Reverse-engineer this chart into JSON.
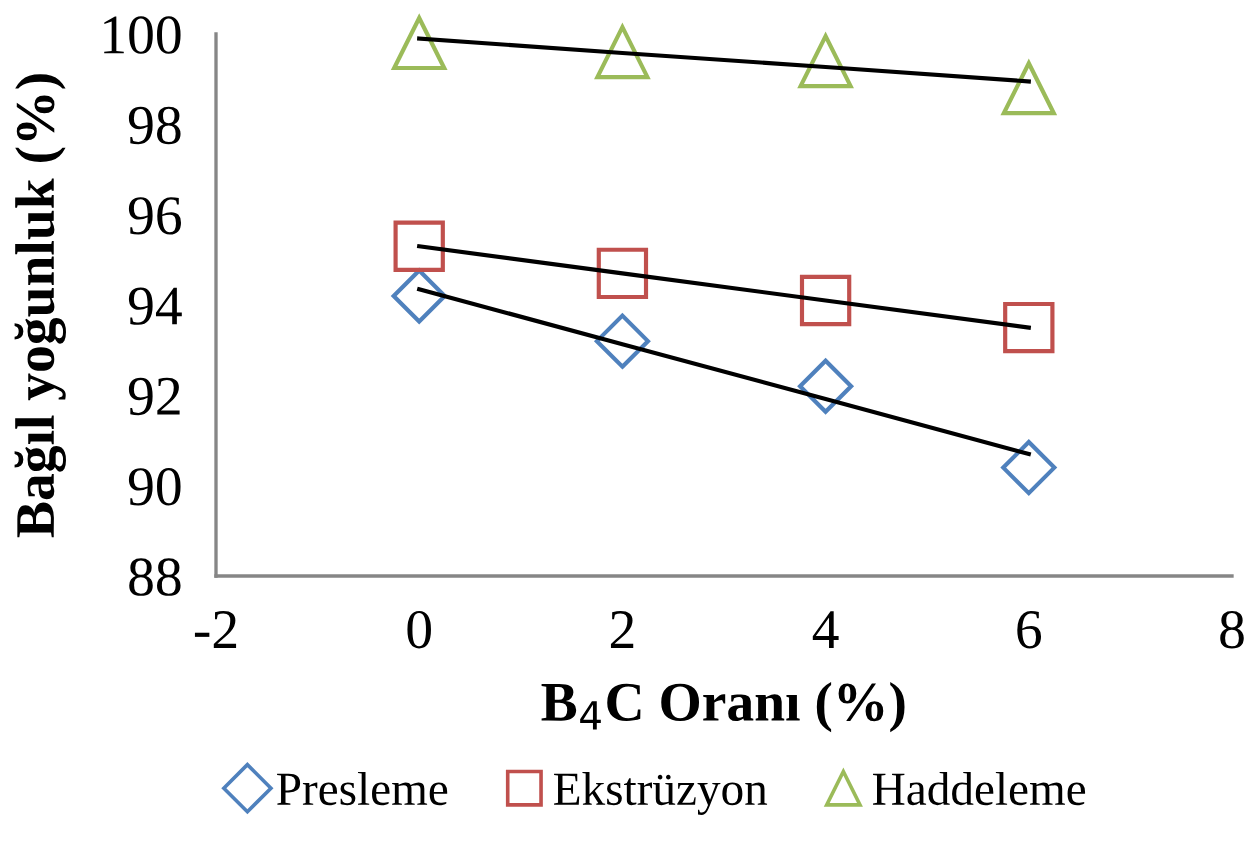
{
  "chart_data": {
    "type": "scatter",
    "xlabel": "B$_{4}$C Oranı (%)",
    "ylabel": "Bağıl yoğunluk (%)",
    "x": [
      0,
      2,
      4,
      6
    ],
    "series": [
      {
        "name": "Presleme",
        "color": "#4f81bd",
        "marker": "diamond",
        "values": [
          94.2,
          93.2,
          92.2,
          90.4
        ]
      },
      {
        "name": "Ekstrüzyon",
        "color": "#c0504d",
        "marker": "square",
        "values": [
          95.3,
          94.7,
          94.1,
          93.5
        ]
      },
      {
        "name": "Haddeleme",
        "color": "#9bbb59",
        "marker": "triangle",
        "values": [
          99.8,
          99.6,
          99.4,
          98.8
        ]
      },
      {
        "type": "line",
        "color": "#000000",
        "marker": "none",
        "values": [
          94.35,
          93.13,
          91.92,
          90.7
        ]
      },
      {
        "type": "line",
        "color": "#000000",
        "marker": "none",
        "values": [
          95.3,
          94.7,
          94.1,
          93.5
        ]
      },
      {
        "type": "line",
        "color": "#000000",
        "marker": "none",
        "values": [
          99.9,
          99.58,
          99.27,
          98.95
        ]
      }
    ],
    "xlim": [
      -2,
      8
    ],
    "xticks": [
      -2,
      0,
      2,
      4,
      6,
      8
    ],
    "ylim": [
      88,
      100
    ],
    "yticks": [
      88,
      90,
      92,
      94,
      96,
      98,
      100
    ],
    "grid": false,
    "legend": "bottom"
  }
}
